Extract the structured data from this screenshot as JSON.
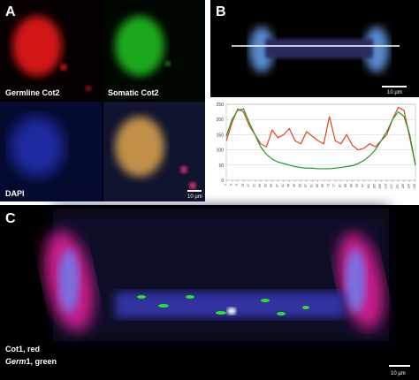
{
  "panels": {
    "a": {
      "label": "A",
      "captions": [
        "Germline Cot2",
        "Somatic Cot2",
        "DAPI"
      ],
      "scale_bar": "10 µm"
    },
    "b": {
      "label": "B",
      "scale_bar": "10 µm"
    },
    "c": {
      "label": "C",
      "legend_line1": "Cot1, red",
      "legend_gene": "Germ",
      "legend_line2_rest": "1, green",
      "scale_bar": "10 µm"
    }
  },
  "chart_data": {
    "type": "line",
    "x": [
      1,
      5,
      9,
      13,
      17,
      21,
      25,
      29,
      33,
      37,
      41,
      45,
      49,
      53,
      57,
      61,
      65,
      69,
      73,
      77,
      81,
      85,
      89,
      93,
      97,
      101,
      105,
      109,
      113,
      117,
      121,
      125,
      129,
      133
    ],
    "series": [
      {
        "name": "Cot1",
        "color": "#e8401c",
        "values": [
          130,
          190,
          235,
          225,
          180,
          150,
          120,
          110,
          165,
          140,
          150,
          170,
          130,
          120,
          160,
          145,
          130,
          120,
          210,
          130,
          120,
          150,
          115,
          100,
          105,
          120,
          110,
          130,
          150,
          200,
          240,
          230,
          140,
          50
        ]
      },
      {
        "name": "Germ1",
        "color": "#1e9a24",
        "values": [
          145,
          200,
          230,
          235,
          190,
          150,
          110,
          85,
          70,
          60,
          55,
          50,
          45,
          42,
          40,
          40,
          38,
          38,
          38,
          40,
          42,
          45,
          48,
          55,
          65,
          80,
          100,
          130,
          160,
          200,
          225,
          210,
          150,
          50
        ]
      }
    ],
    "xlim": [
      1,
      133
    ],
    "xticks": [
      1,
      5,
      9,
      13,
      17,
      21,
      25,
      29,
      33,
      37,
      41,
      45,
      49,
      53,
      57,
      61,
      65,
      69,
      73,
      77,
      81,
      85,
      89,
      93,
      97,
      101,
      105,
      109,
      113,
      117,
      121,
      125,
      129,
      133
    ],
    "ylim": [
      0,
      250
    ],
    "yticks": [
      0,
      50,
      100,
      150,
      200,
      250
    ],
    "grid": true
  }
}
